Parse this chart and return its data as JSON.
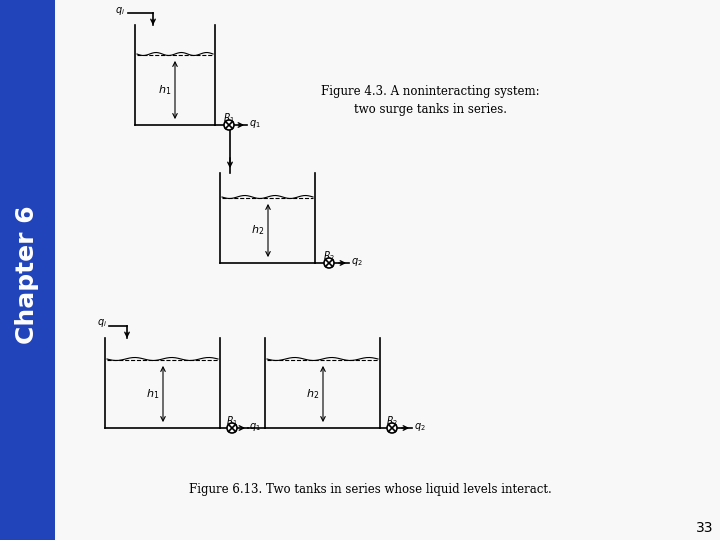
{
  "bg_color": "#ffffff",
  "sidebar_color": "#2244bb",
  "chapter_text": "Chapter 6",
  "page_number": "33",
  "fig43_caption": "Figure 4.3. A noninteracting system:\ntwo surge tanks in series.",
  "fig613_caption": "Figure 6.13. Two tanks in series whose liquid levels interact."
}
